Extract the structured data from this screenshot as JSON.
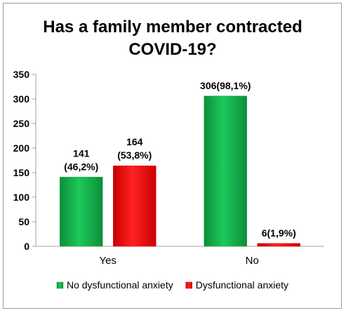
{
  "chart_data": {
    "type": "bar",
    "title_lines": [
      "Has a family member contracted",
      "COVID-19?"
    ],
    "categories": [
      "Yes",
      "No"
    ],
    "series": [
      {
        "name": "No dysfunctional anxiety",
        "color": "#18b14c",
        "values": [
          141,
          306
        ],
        "labels": [
          [
            "141",
            "(46,2%)"
          ],
          [
            "306(98,1%)"
          ]
        ]
      },
      {
        "name": "Dysfunctional anxiety",
        "color": "#ee1111",
        "values": [
          164,
          6
        ],
        "labels": [
          [
            "164",
            "(53,8%)"
          ],
          [
            "6(1,9%)"
          ]
        ]
      }
    ],
    "ylim": [
      0,
      350
    ],
    "yticks": [
      0,
      50,
      100,
      150,
      200,
      250,
      300,
      350
    ],
    "grid": false,
    "legend_position": "bottom"
  }
}
